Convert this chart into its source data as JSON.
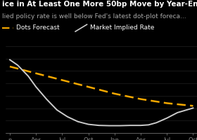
{
  "title_line1": "ice in At Least One More 50bp Move by Year-End",
  "title_line2": "lied policy rate is well below Fed's latest dot-plot foreca...",
  "legend_dots": "Dots Forecast",
  "legend_market": "Market Implied Rate",
  "background_color": "#000000",
  "text_color": "#ffffff",
  "subtitle_color": "#aaaaaa",
  "grid_color": "#2a2a2a",
  "tick_color": "#888888",
  "x_labels": [
    "n",
    "Apr",
    "Jul",
    "Oct",
    "Jan",
    "Apr",
    "Jul",
    "Oct"
  ],
  "x_tick_positions": [
    0,
    1,
    2,
    3,
    4,
    5,
    6,
    7
  ],
  "dots_forecast_x": [
    0,
    1,
    2,
    3,
    4,
    5,
    6,
    7
  ],
  "dots_forecast_y": [
    4.85,
    4.6,
    4.35,
    4.1,
    3.85,
    3.65,
    3.5,
    3.4
  ],
  "market_implied_x": [
    0,
    0.3,
    0.7,
    1.0,
    1.4,
    1.8,
    2.2,
    2.6,
    3.0,
    3.4,
    3.8,
    4.2,
    4.6,
    5.0,
    5.3,
    5.6,
    6.0,
    6.4,
    7.0
  ],
  "market_implied_y": [
    5.1,
    4.9,
    4.5,
    4.1,
    3.65,
    3.25,
    3.0,
    2.82,
    2.72,
    2.68,
    2.67,
    2.67,
    2.68,
    2.68,
    2.7,
    2.78,
    2.95,
    3.15,
    3.32
  ],
  "ylim": [
    2.4,
    5.6
  ],
  "dots_color": "#f5a800",
  "market_color": "#cccccc",
  "title_fontsize": 7.5,
  "subtitle_fontsize": 6.5,
  "legend_fontsize": 6.5,
  "tick_fontsize": 6,
  "grid_linewidth": 0.4,
  "n_gridlines": 8
}
